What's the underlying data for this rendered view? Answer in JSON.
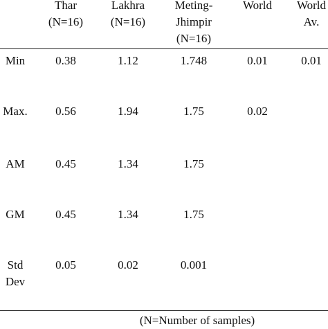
{
  "table": {
    "header": [
      [
        "Thar",
        "(N=16)"
      ],
      [
        "Lakhra",
        "(N=16)"
      ],
      [
        "Meting-",
        "Jhimpir",
        "(N=16)"
      ],
      [
        "World"
      ],
      [
        "World",
        "Av."
      ]
    ],
    "rows": [
      [
        "Min",
        "0.38",
        "1.12",
        "1.748",
        "0.01",
        "0.01"
      ],
      [
        "Max.",
        "0.56",
        "1.94",
        "1.75",
        "0.02"
      ],
      [
        "AM",
        "0.45",
        "1.34",
        "1.75"
      ],
      [
        "GM",
        "0.45",
        "1.34",
        "1.75"
      ],
      [
        "Std Dev",
        "0.05",
        "0.02",
        "0.001"
      ]
    ],
    "footnote": "(N=Number of samples)"
  }
}
